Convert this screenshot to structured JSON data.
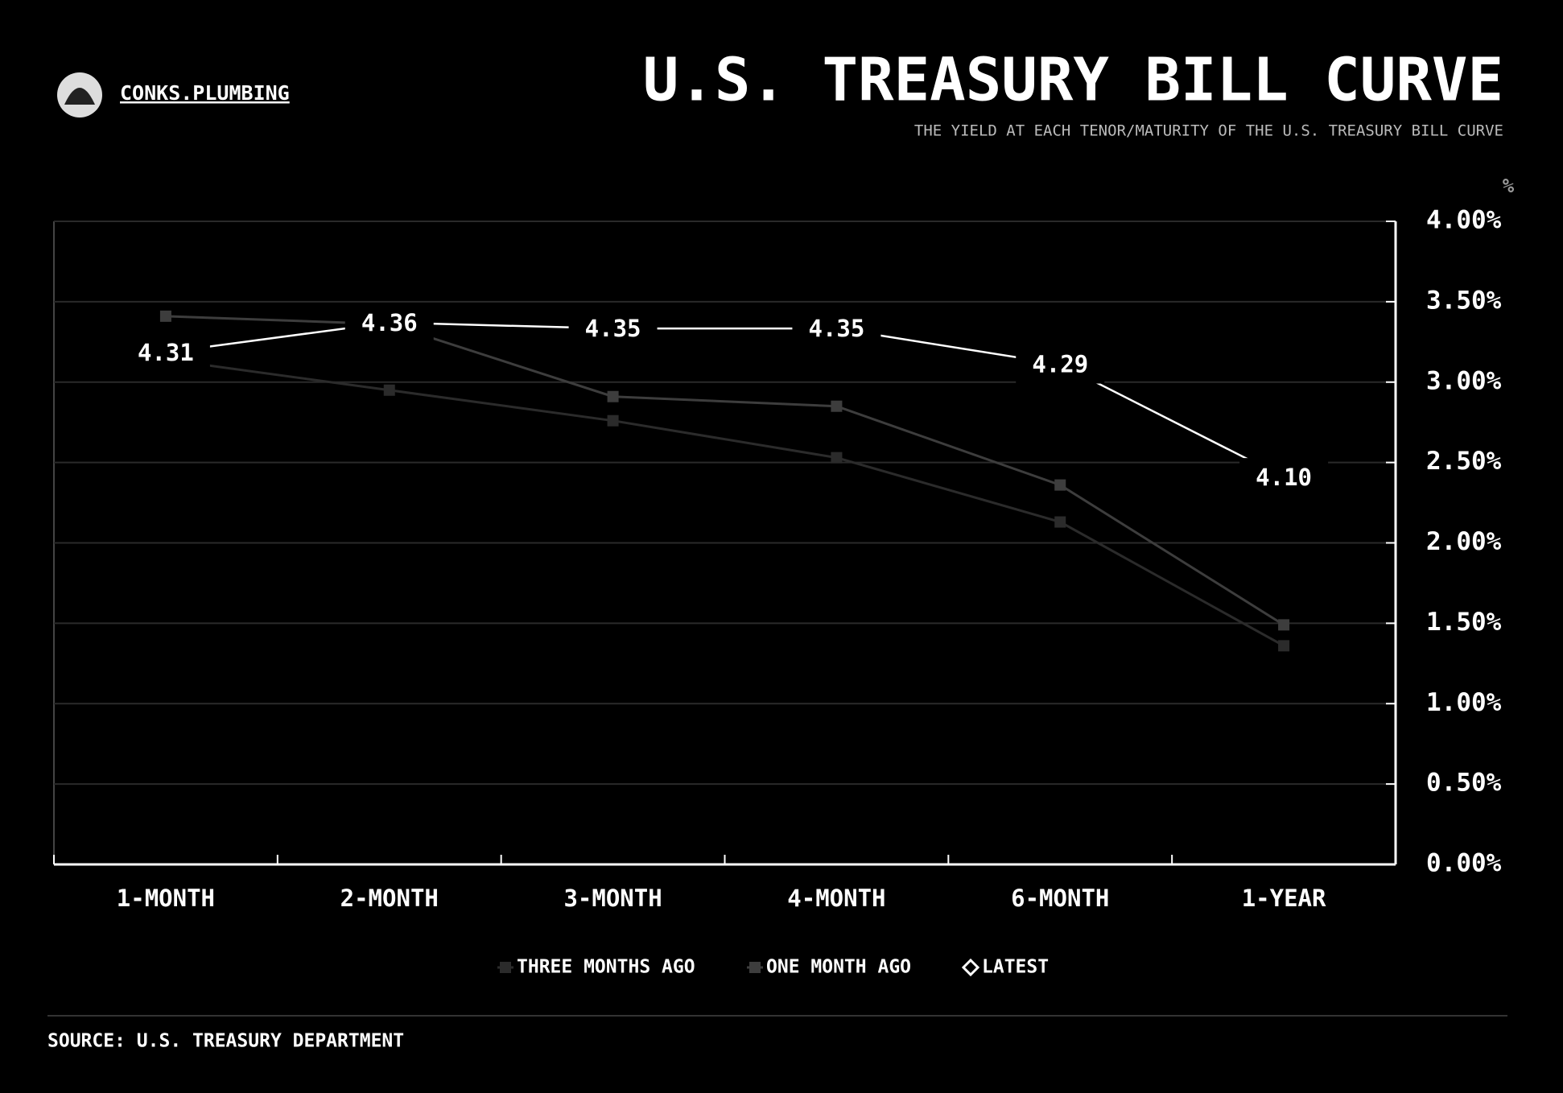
{
  "chart_data": {
    "type": "line",
    "brand": "CONKS.PLUMBING",
    "title": "U.S. TREASURY BILL CURVE",
    "subtitle": "THE YIELD AT EACH TENOR/MATURITY OF THE U.S. TREASURY BILL CURVE",
    "y_unit": "%",
    "source": "SOURCE: U.S. TREASURY DEPARTMENT",
    "categories": [
      "1-MONTH",
      "2-MONTH",
      "3-MONTH",
      "4-MONTH",
      "6-MONTH",
      "1-YEAR"
    ],
    "series": [
      {
        "name": "THREE MONTHS AGO",
        "color": "#2b2b2b",
        "marker": "square",
        "values": [
          3.14,
          2.95,
          2.76,
          2.53,
          2.13,
          1.36
        ]
      },
      {
        "name": "ONE MONTH AGO",
        "color": "#3d3d3d",
        "marker": "square",
        "values": [
          3.41,
          3.36,
          2.91,
          2.85,
          2.36,
          1.49
        ]
      },
      {
        "name": "LATEST",
        "color": "#ffffff",
        "marker": "diamond",
        "axis": "y2",
        "values": [
          4.31,
          4.36,
          4.35,
          4.35,
          4.29,
          4.1
        ],
        "value_labels": [
          "4.31",
          "4.36",
          "4.35",
          "4.35",
          "4.29",
          "4.10"
        ]
      }
    ],
    "ylim": [
      0,
      4
    ],
    "yticks": [
      {
        "value": 0,
        "label": "0.00%"
      },
      {
        "value": 0.5,
        "label": "0.50%"
      },
      {
        "value": 1,
        "label": "1.00%"
      },
      {
        "value": 1.5,
        "label": "1.50%"
      },
      {
        "value": 2,
        "label": "2.00%"
      },
      {
        "value": 2.5,
        "label": "2.50%"
      },
      {
        "value": 3,
        "label": "3.00%"
      },
      {
        "value": 3.5,
        "label": "3.50%"
      },
      {
        "value": 4,
        "label": "4.00%"
      }
    ],
    "y2lim": [
      3.45,
      4.53
    ],
    "grid": true,
    "legend": "bottom"
  }
}
